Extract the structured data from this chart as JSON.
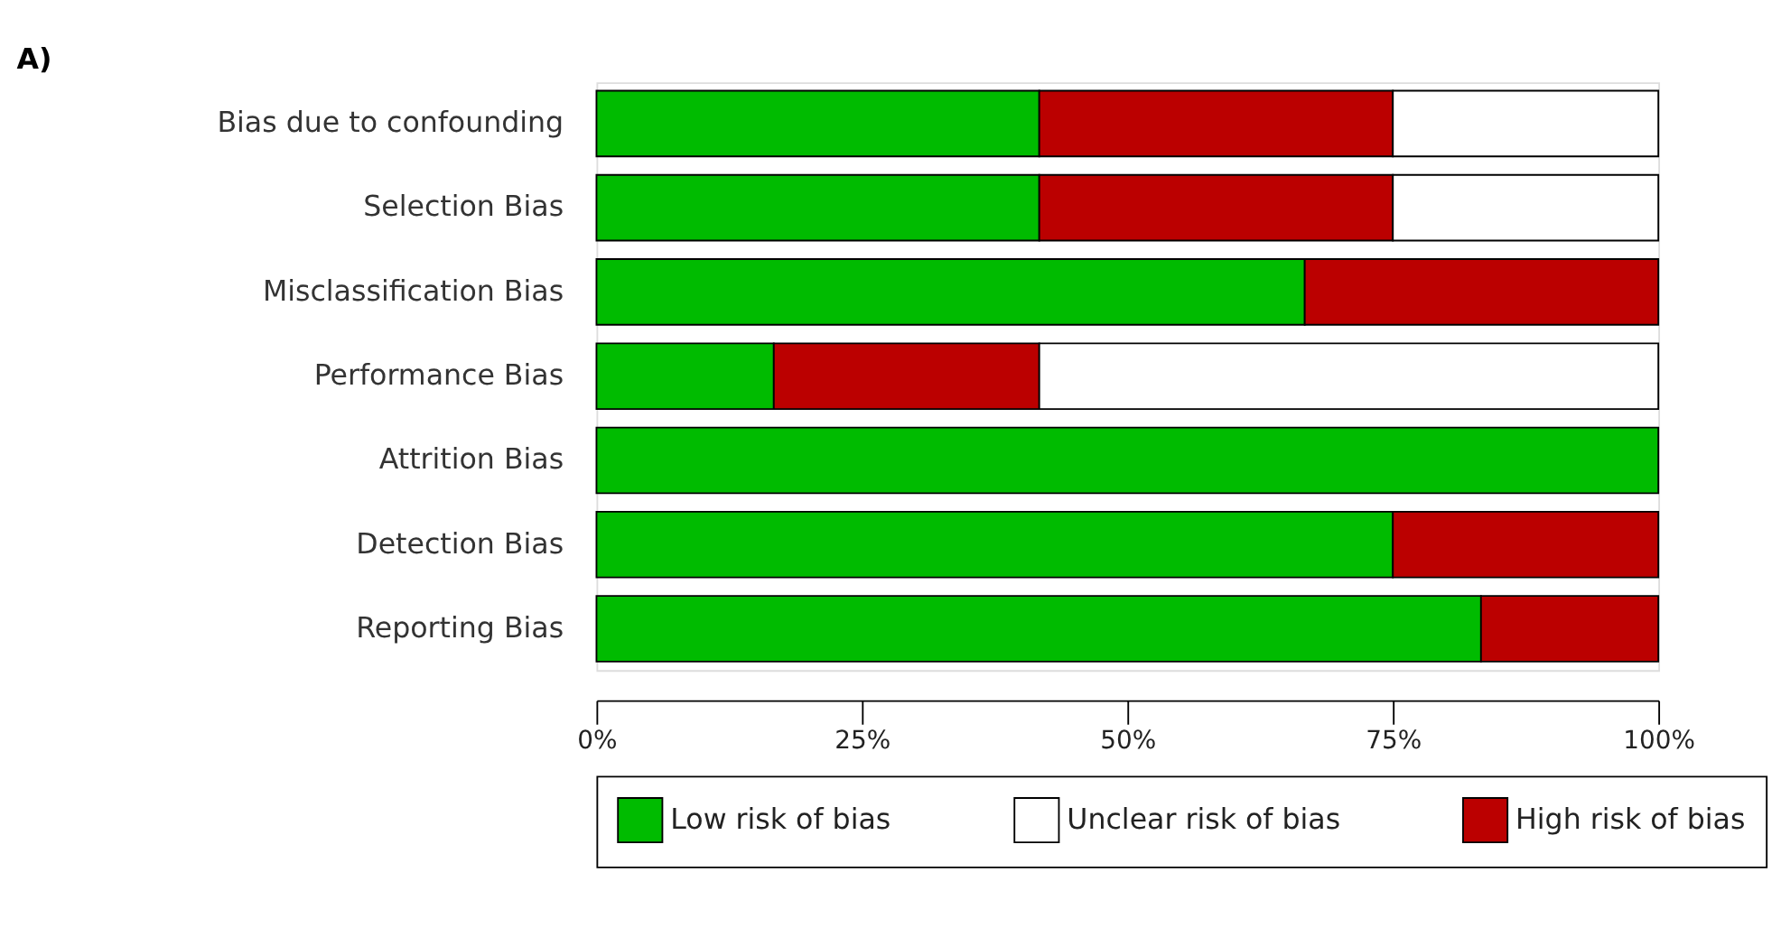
{
  "chart_data": {
    "type": "bar",
    "orientation": "horizontal",
    "stacked": true,
    "categories": [
      "Bias due to confounding",
      "Selection Bias",
      "Misclassification Bias",
      "Performance Bias",
      "Attrition Bias",
      "Detection Bias",
      "Reporting Bias"
    ],
    "series": [
      {
        "name": "Low risk of bias",
        "color": "#00bb00",
        "values": [
          41.7,
          41.7,
          66.7,
          16.7,
          100,
          75,
          83.3
        ]
      },
      {
        "name": "High risk of bias",
        "color": "#bb0000",
        "values": [
          33.3,
          33.3,
          33.3,
          25,
          null,
          25,
          16.7
        ]
      },
      {
        "name": "Unclear risk of bias",
        "color": "#ffffff",
        "values": [
          25,
          25,
          null,
          58.3,
          null,
          null,
          null
        ]
      }
    ],
    "xlim": [
      0,
      100
    ],
    "xticks": [
      {
        "value": 0,
        "label": "0%"
      },
      {
        "value": 25,
        "label": "25%"
      },
      {
        "value": 50,
        "label": "50%"
      },
      {
        "value": 75,
        "label": "75%"
      },
      {
        "value": 100,
        "label": "100%"
      }
    ],
    "grid": false,
    "legend": "bottom",
    "annotations": [
      "A)"
    ]
  }
}
